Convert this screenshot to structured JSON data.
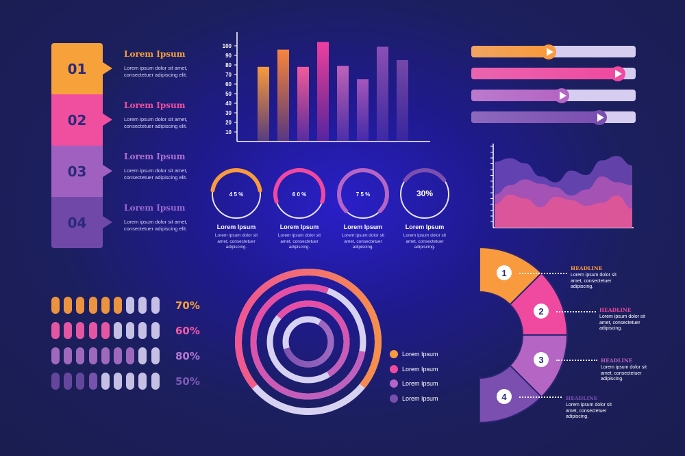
{
  "steps": [
    {
      "num": "01",
      "title": "Lorem Ipsum",
      "text": "Lorem ipsum dolor sit amet, consectetuer adipiscing elit.",
      "color": "#f7a13a",
      "title_color": "#f7a13a"
    },
    {
      "num": "02",
      "title": "Lorem Ipsum",
      "text": "Lorem ipsum dolor sit amet, consectetuer adipiscing elit.",
      "color": "#f04fa0",
      "title_color": "#f04fa0"
    },
    {
      "num": "03",
      "title": "Lorem Ipsum",
      "text": "Lorem ipsum dolor sit amet, consectetuer adipiscing elit.",
      "color": "#a060c0",
      "title_color": "#b070d0"
    },
    {
      "num": "04",
      "title": "Lorem Ipsum",
      "text": "Lorem ipsum dolor sit amet, consectetuer adipiscing elit.",
      "color": "#7048a8",
      "title_color": "#9a6ad0"
    }
  ],
  "progress_bars": [
    {
      "value": 0.45,
      "color": "#f89a3d"
    },
    {
      "value": 0.87,
      "color": "#ef4a9f"
    },
    {
      "value": 0.53,
      "color": "#b565c4"
    },
    {
      "value": 0.76,
      "color": "#7b4fb0"
    }
  ],
  "donuts": [
    {
      "label": "4 5 %",
      "value": 45,
      "title": "Lorem Ipsum",
      "text": "Lorem ipsum dolor sit amet, consectetuer adipiscing.",
      "color": "#f89a3d"
    },
    {
      "label": "6 0 %",
      "value": 60,
      "title": "Lorem Ipsum",
      "text": "Lorem ipsum dolor sit amet, consectetuer adipiscing.",
      "color": "#ef4a9f"
    },
    {
      "label": "7 5 %",
      "value": 75,
      "title": "Lorem Ipsum",
      "text": "Lorem ipsum dolor sit amet, consectetuer adipiscing.",
      "color": "#b565c4"
    },
    {
      "label": "30%",
      "value": 30,
      "title": "Lorem Ipsum",
      "text": "Lorem ipsum dolor sit amet, consectetuer adipiscing.",
      "color": "#7b4fb0"
    }
  ],
  "pill_rows": [
    {
      "pct": "70%",
      "filled": 6,
      "total": 9,
      "color": "#f89a3d",
      "pct_color": "#f6a03c"
    },
    {
      "pct": "60%",
      "filled": 5,
      "total": 9,
      "color": "#ef5aa7",
      "pct_color": "#f15aa6"
    },
    {
      "pct": "80%",
      "filled": 7,
      "total": 9,
      "color": "#a56ec2",
      "pct_color": "#b178d0"
    },
    {
      "pct": "50%",
      "filled": 4,
      "total": 9,
      "color": "#7d56b3",
      "pct_color": "#7d5ab6"
    }
  ],
  "rings_legend": [
    {
      "label": "Lorem Ipsum",
      "color": "#f89a3d"
    },
    {
      "label": "Lorem Ipsum",
      "color": "#ef4a9f"
    },
    {
      "label": "Lorem Ipsum",
      "color": "#b565c4"
    },
    {
      "label": "Lorem Ipsum",
      "color": "#7b4fb0"
    }
  ],
  "half_donut": [
    {
      "num": "1",
      "title": "HEADLINE",
      "text": "Lorem ipsum dolor sit amet, consectetuer adipiscing.",
      "color": "#f89a3d"
    },
    {
      "num": "2",
      "title": "HEADLINE",
      "text": "Lorem ipsum dolor sit amet, consectetuer adipiscing.",
      "color": "#ef4a9f"
    },
    {
      "num": "3",
      "title": "HEADLINE",
      "text": "Lorem ipsum dolor sit amet, consectetuer adipiscing.",
      "color": "#b565c4"
    },
    {
      "num": "4",
      "title": "HEADLINE",
      "text": "Lorem ipsum dolor sit amet, consectetuer adipiscing.",
      "color": "#7b4fb0"
    }
  ],
  "chart_data": [
    {
      "type": "bar",
      "values": [
        78,
        96,
        78,
        104,
        79,
        65,
        99,
        85
      ],
      "colors": [
        "#f89a3d",
        "#f7853f",
        "#f25a9d",
        "#ee3fa0",
        "#c062bc",
        "#a556c0",
        "#8b4fb8",
        "#7647ac"
      ],
      "yticks": [
        "10",
        "20",
        "30",
        "40",
        "50",
        "60",
        "70",
        "80",
        "90",
        "100"
      ],
      "ylim": [
        0,
        110
      ]
    },
    {
      "type": "area",
      "series": [
        {
          "color": "#7a4fc0",
          "values": [
            90,
            95,
            88,
            70,
            62,
            78,
            72,
            92,
            98,
            85
          ]
        },
        {
          "color": "#c05ab8",
          "values": [
            45,
            58,
            66,
            60,
            55,
            44,
            52,
            70,
            62,
            58
          ]
        },
        {
          "color": "#f2578f",
          "values": [
            32,
            45,
            40,
            28,
            42,
            38,
            30,
            34,
            44,
            26
          ]
        }
      ]
    }
  ]
}
